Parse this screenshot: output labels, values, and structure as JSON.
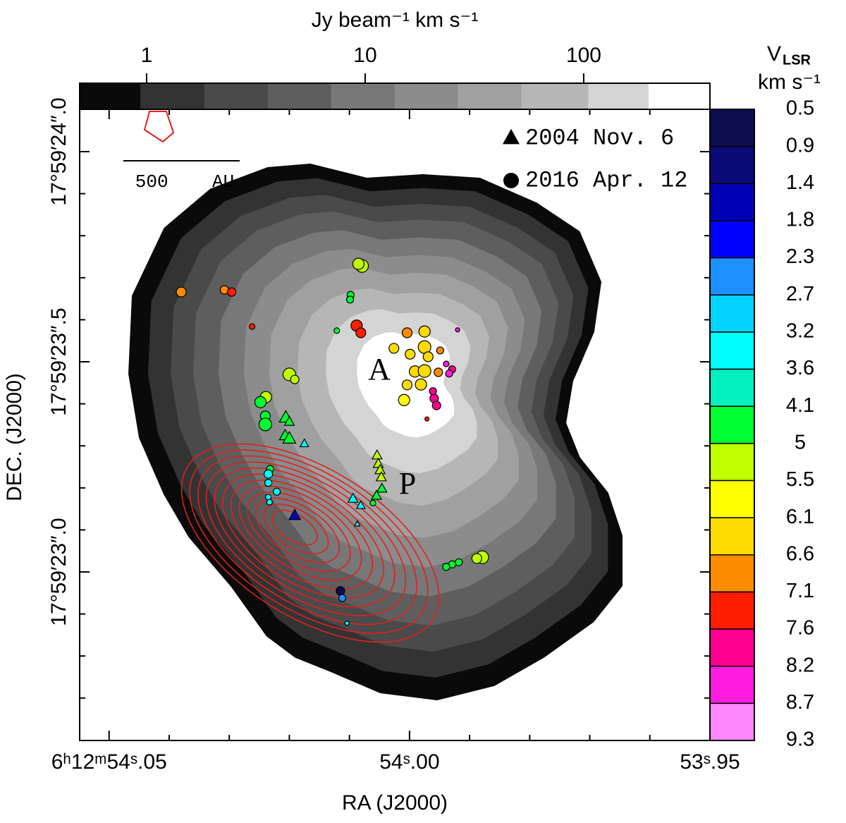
{
  "chart_data": {
    "type": "scatter",
    "xlabel": "RA (J2000)",
    "ylabel": "DEC. (J2000)",
    "xlim": [
      54.0549,
      53.95
    ],
    "ylim": [
      22.599,
      24.1007
    ],
    "xticks": [
      {
        "value": 54.05,
        "label": "6ʰ12ᵐ54ˢ.05"
      },
      {
        "value": 54.0,
        "label": "54ˢ.00"
      },
      {
        "value": 53.95,
        "label": "53ˢ.95"
      }
    ],
    "xminor_ticks": [
      54.04,
      54.03,
      54.02,
      54.01,
      53.99,
      53.98,
      53.97,
      53.96
    ],
    "yticks": [
      {
        "value": 24.0,
        "label": "17°59′24″.0"
      },
      {
        "value": 23.5,
        "label": "17°59′23″.5"
      },
      {
        "value": 23.0,
        "label": "17°59′23″.0"
      }
    ],
    "yminor_ticks": [
      23.9,
      23.8,
      23.7,
      23.6,
      23.4,
      23.3,
      23.2,
      23.1,
      22.9,
      22.8,
      22.7
    ],
    "annotations": [
      "A",
      "P"
    ],
    "scale_bar": "500    AU",
    "legend": "upper right",
    "colorbar_top": {
      "label": "Jy beam⁻¹ km s⁻¹",
      "scale": "log",
      "lim": [
        0.494,
        378
      ],
      "ticks": [
        1,
        10,
        100
      ],
      "levels": [
        0.494,
        0.94,
        1.84,
        3.59,
        7.0,
        13.7,
        26.7,
        52,
        105,
        198,
        378
      ],
      "colors": [
        "#0a0a0a",
        "#333333",
        "#4a4a4a",
        "#5e5e5e",
        "#787878",
        "#8c8c8c",
        "#a0a0a0",
        "#b6b6b6",
        "#d4d4d4",
        "#ffffff"
      ]
    },
    "colorbar_right": {
      "title": "V",
      "title_sub": "LSR",
      "unit": "km s⁻¹",
      "ticks": [
        0.5,
        0.9,
        1.4,
        1.8,
        2.3,
        2.7,
        3.2,
        3.6,
        4.1,
        5,
        5.5,
        6.1,
        6.6,
        7.1,
        7.6,
        8.2,
        8.7,
        9.3
      ],
      "colors": [
        "#0c0c50",
        "#0a0a78",
        "#0000b4",
        "#0000ff",
        "#1e90ff",
        "#00d4ff",
        "#00ffff",
        "#00f0c0",
        "#00ff30",
        "#c0ff00",
        "#ffff00",
        "#ffdc00",
        "#ff8c00",
        "#ff1e00",
        "#ff0090",
        "#ff1ee0",
        "#ff88ff"
      ]
    },
    "series": [
      {
        "name": "2004 Nov. 6",
        "marker": "triangle",
        "x": [
          54.0206,
          54.02,
          54.0207,
          54.02,
          54.0175,
          54.0054,
          54.0052,
          54.0049,
          54.0047,
          54.0046,
          54.0055,
          54.0094,
          54.0081,
          54.0087,
          54.0191
        ],
        "y": [
          23.367,
          23.357,
          23.324,
          23.317,
          23.305,
          23.277,
          23.257,
          23.242,
          23.225,
          23.198,
          23.181,
          23.174,
          23.158,
          23.114,
          23.134
        ],
        "values": [
          4.5,
          4.5,
          4.5,
          4.5,
          3.4,
          5.2,
          5.2,
          5.2,
          5.2,
          4.5,
          4.5,
          3.4,
          3.4,
          3.4,
          1.6
        ],
        "sizes": [
          9,
          7,
          8,
          9,
          6,
          7,
          7,
          7,
          7,
          7,
          7,
          7,
          6,
          4,
          8
        ]
      },
      {
        "name": "2016 Apr. 12",
        "marker": "circle",
        "x": [
          54.038,
          54.0308,
          54.0296,
          54.0262,
          54.0079,
          54.0085,
          54.0098,
          54.0099,
          54.0121,
          54.0088,
          54.0081,
          54.02,
          54.0191,
          54.0239,
          54.0248,
          54.024,
          54.024,
          54.0004,
          54.0026,
          53.9999,
          53.9975,
          53.9975,
          53.9969,
          53.9991,
          53.9975,
          53.9981,
          54.0009,
          54.0004,
          53.9949,
          53.9952,
          53.9939,
          53.9929,
          53.9934,
          53.9959,
          53.9955,
          53.9961,
          53.9971,
          53.992,
          53.9879,
          53.9888,
          53.9918,
          53.9929,
          53.9939,
          54.0115,
          54.0112,
          54.0104,
          54.0232,
          54.0235,
          54.0221,
          54.0235,
          54.0233,
          54.0235,
          54.0061
        ],
        "y": [
          23.666,
          23.671,
          23.666,
          23.584,
          23.728,
          23.733,
          23.659,
          23.648,
          23.574,
          23.586,
          23.569,
          23.47,
          23.458,
          23.416,
          23.404,
          23.371,
          23.351,
          23.569,
          23.532,
          23.518,
          23.572,
          23.535,
          23.512,
          23.477,
          23.478,
          23.446,
          23.409,
          23.445,
          23.527,
          23.475,
          23.495,
          23.482,
          23.472,
          23.413,
          23.396,
          23.43,
          23.364,
          23.576,
          23.035,
          23.032,
          23.023,
          23.018,
          23.012,
          22.955,
          22.938,
          22.878,
          23.245,
          23.212,
          23.191,
          23.178,
          23.166,
          23.233,
          23.164
        ],
        "values": [
          6.9,
          6.9,
          7.3,
          7.3,
          5.2,
          5.2,
          4.5,
          4.5,
          4.5,
          7.3,
          7.3,
          5.2,
          5.2,
          5.2,
          4.5,
          4.5,
          4.5,
          6.9,
          6.3,
          6.3,
          6.3,
          6.3,
          6.3,
          6.3,
          6.3,
          6.3,
          5.8,
          6.3,
          6.9,
          6.9,
          8.4,
          7.9,
          8.4,
          7.9,
          7.9,
          7.9,
          7.3,
          8.4,
          5.2,
          5.2,
          4.5,
          4.5,
          4.5,
          0.7,
          2.5,
          3.4,
          4.5,
          3.4,
          3.4,
          3.4,
          3.4,
          3.4,
          4.5
        ],
        "sizes": [
          7,
          6,
          6,
          4,
          9,
          8,
          5,
          5,
          4,
          8,
          7,
          9,
          6,
          8,
          8,
          7,
          9,
          7,
          7,
          7,
          8,
          9,
          7,
          8,
          9,
          8,
          8,
          7,
          5,
          6,
          4,
          5,
          5,
          6,
          6,
          5,
          3,
          3,
          9,
          7,
          5,
          5,
          5,
          6,
          5,
          3,
          5,
          5,
          5,
          4,
          4,
          6,
          4
        ]
      }
    ]
  }
}
